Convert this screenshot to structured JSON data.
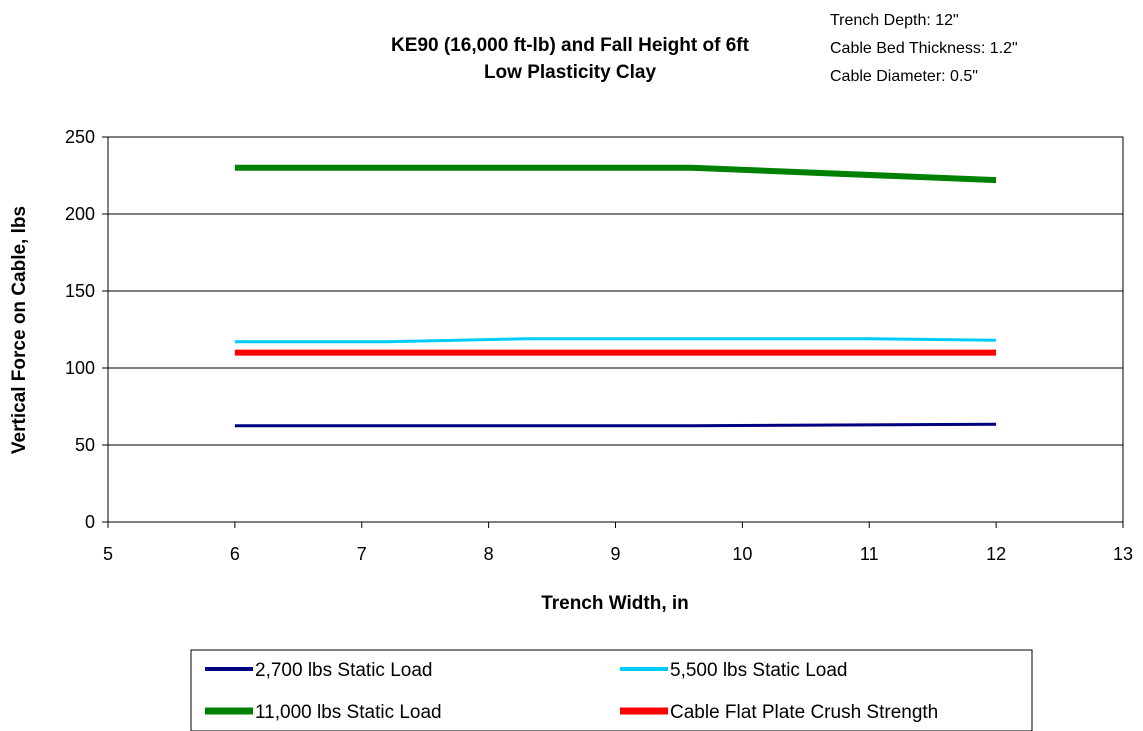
{
  "chart_data": {
    "type": "line",
    "title": "KE90 (16,000 ft-lb) and Fall Height of 6ft",
    "subtitle": "Low Plasticity Clay",
    "annotations": [
      "Trench Depth: 12\"",
      "Cable Bed Thickness: 1.2\"",
      "Cable Diameter: 0.5\""
    ],
    "xlabel": "Trench Width, in",
    "ylabel": "Vertical Force on Cable, lbs",
    "xlim": [
      5,
      13
    ],
    "ylim": [
      0,
      250
    ],
    "x_ticks": [
      5,
      6,
      7,
      8,
      9,
      10,
      11,
      12,
      13
    ],
    "y_ticks": [
      0,
      50,
      100,
      150,
      200,
      250
    ],
    "grid": "horizontal",
    "legend_position": "bottom",
    "series": [
      {
        "name": "2,700 lbs Static Load",
        "color": "#000080",
        "x": [
          6,
          9.6,
          12
        ],
        "values": [
          62.5,
          62.5,
          63.5
        ]
      },
      {
        "name": "5,500 lbs Static Load",
        "color": "#00ccff",
        "x": [
          6,
          7.2,
          8.3,
          11,
          12
        ],
        "values": [
          117,
          117,
          119,
          119,
          118
        ]
      },
      {
        "name": "11,000 lbs Static Load",
        "color": "#008000",
        "x": [
          6,
          9.6,
          12
        ],
        "values": [
          230,
          230,
          222
        ]
      },
      {
        "name": "Cable Flat Plate Crush Strength",
        "color": "#ff0000",
        "x": [
          6,
          12
        ],
        "values": [
          110,
          110
        ]
      }
    ]
  }
}
